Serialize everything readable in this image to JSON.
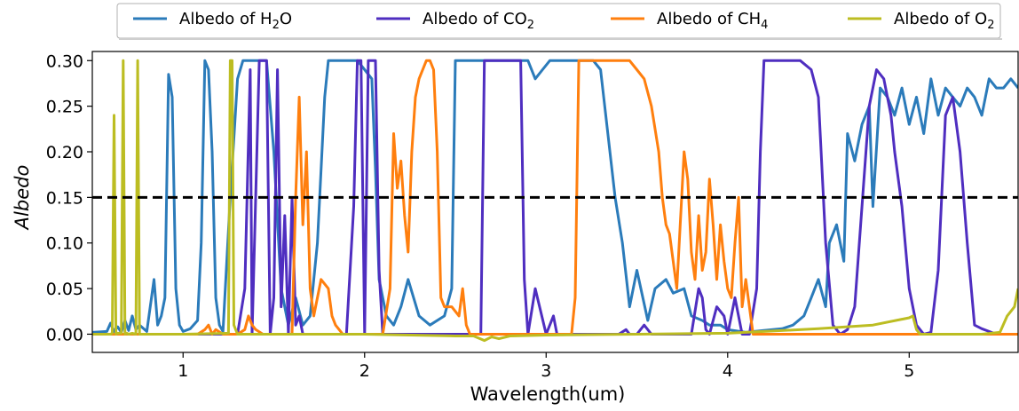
{
  "chart_data": {
    "type": "line",
    "xlabel": "Wavelength(um)",
    "ylabel": "Albedo",
    "xlim": [
      0.5,
      5.6
    ],
    "ylim": [
      -0.02,
      0.31
    ],
    "xticks": [
      1,
      2,
      3,
      4,
      5
    ],
    "yticks": [
      0.0,
      0.05,
      0.1,
      0.15,
      0.2,
      0.25,
      0.3
    ],
    "ytick_labels": [
      "0.00",
      "0.05",
      "0.10",
      "0.15",
      "0.20",
      "0.25",
      "0.30"
    ],
    "legend_position": "top-center, outside plot",
    "hline": {
      "y": 0.15,
      "style": "dashed",
      "color": "#000000"
    },
    "series": [
      {
        "name": "Albedo of H2O",
        "legend_base": "Albedo of H",
        "legend_sub": "2",
        "legend_tail": "O",
        "color": "#2b7bba",
        "x": [
          0.5,
          0.58,
          0.6,
          0.62,
          0.64,
          0.66,
          0.68,
          0.7,
          0.72,
          0.74,
          0.76,
          0.8,
          0.84,
          0.86,
          0.88,
          0.9,
          0.92,
          0.94,
          0.96,
          0.98,
          1.0,
          1.04,
          1.08,
          1.1,
          1.12,
          1.14,
          1.16,
          1.18,
          1.2,
          1.22,
          1.26,
          1.3,
          1.33,
          1.36,
          1.38,
          1.42,
          1.46,
          1.5,
          1.54,
          1.58,
          1.62,
          1.66,
          1.7,
          1.74,
          1.78,
          1.8,
          1.84,
          1.9,
          1.96,
          2.0,
          2.04,
          2.06,
          2.08,
          2.12,
          2.16,
          2.2,
          2.24,
          2.3,
          2.36,
          2.44,
          2.48,
          2.5,
          2.54,
          2.6,
          2.7,
          2.8,
          2.9,
          2.94,
          2.98,
          3.02,
          3.06,
          3.1,
          3.14,
          3.16,
          3.2,
          3.26,
          3.3,
          3.34,
          3.38,
          3.42,
          3.46,
          3.5,
          3.56,
          3.6,
          3.66,
          3.7,
          3.76,
          3.8,
          3.86,
          3.9,
          3.96,
          4.0,
          4.1,
          4.2,
          4.3,
          4.36,
          4.42,
          4.46,
          4.5,
          4.54,
          4.56,
          4.6,
          4.64,
          4.66,
          4.7,
          4.74,
          4.78,
          4.8,
          4.84,
          4.88,
          4.92,
          4.96,
          5.0,
          5.04,
          5.08,
          5.12,
          5.16,
          5.2,
          5.24,
          5.28,
          5.32,
          5.36,
          5.4,
          5.44,
          5.48,
          5.52,
          5.56,
          5.6
        ],
        "y": [
          0.002,
          0.003,
          0.012,
          0.003,
          0.008,
          0.002,
          0.015,
          0.004,
          0.02,
          0.005,
          0.01,
          0.003,
          0.06,
          0.01,
          0.02,
          0.04,
          0.285,
          0.26,
          0.05,
          0.01,
          0.003,
          0.006,
          0.015,
          0.1,
          0.3,
          0.29,
          0.2,
          0.04,
          0.01,
          0.003,
          0.15,
          0.28,
          0.3,
          0.3,
          0.3,
          0.3,
          0.3,
          0.2,
          0.05,
          0.01,
          0.04,
          0.01,
          0.02,
          0.1,
          0.26,
          0.3,
          0.3,
          0.3,
          0.3,
          0.29,
          0.28,
          0.18,
          0.06,
          0.02,
          0.01,
          0.03,
          0.06,
          0.02,
          0.01,
          0.02,
          0.05,
          0.3,
          0.3,
          0.3,
          0.3,
          0.3,
          0.3,
          0.28,
          0.29,
          0.3,
          0.3,
          0.3,
          0.3,
          0.3,
          0.3,
          0.3,
          0.29,
          0.22,
          0.15,
          0.1,
          0.03,
          0.07,
          0.015,
          0.05,
          0.06,
          0.045,
          0.05,
          0.02,
          0.015,
          0.01,
          0.01,
          0.005,
          0.002,
          0.004,
          0.006,
          0.01,
          0.02,
          0.04,
          0.06,
          0.03,
          0.1,
          0.12,
          0.08,
          0.22,
          0.19,
          0.23,
          0.25,
          0.14,
          0.27,
          0.26,
          0.24,
          0.27,
          0.23,
          0.26,
          0.22,
          0.28,
          0.24,
          0.27,
          0.26,
          0.25,
          0.27,
          0.26,
          0.24,
          0.28,
          0.27,
          0.27,
          0.28,
          0.27
        ]
      },
      {
        "name": "Albedo of CO2",
        "legend_base": "Albedo of CO",
        "legend_sub": "2",
        "legend_tail": "",
        "color": "#4f2ec0",
        "x": [
          0.5,
          1.3,
          1.34,
          1.37,
          1.38,
          1.42,
          1.44,
          1.46,
          1.48,
          1.5,
          1.52,
          1.54,
          1.56,
          1.58,
          1.6,
          1.62,
          1.64,
          1.66,
          1.68,
          1.9,
          1.94,
          1.96,
          1.98,
          2.0,
          2.02,
          2.04,
          2.06,
          2.08,
          2.1,
          2.12,
          2.16,
          2.6,
          2.64,
          2.66,
          2.68,
          2.7,
          2.74,
          2.78,
          2.82,
          2.86,
          2.88,
          2.9,
          2.94,
          3.0,
          3.04,
          3.06,
          3.1,
          3.4,
          3.44,
          3.46,
          3.5,
          3.54,
          3.58,
          3.6,
          3.8,
          3.84,
          3.86,
          3.88,
          3.9,
          3.94,
          3.98,
          4.0,
          4.04,
          4.08,
          4.12,
          4.16,
          4.18,
          4.2,
          4.3,
          4.4,
          4.46,
          4.5,
          4.54,
          4.58,
          4.62,
          4.66,
          4.7,
          4.74,
          4.78,
          4.82,
          4.86,
          4.9,
          4.92,
          4.96,
          5.0,
          5.04,
          5.08,
          5.12,
          5.16,
          5.2,
          5.24,
          5.28,
          5.32,
          5.36,
          5.4,
          5.44,
          5.48,
          5.52,
          5.56,
          5.6
        ],
        "y": [
          0.0,
          0.0,
          0.05,
          0.29,
          0.0,
          0.3,
          0.3,
          0.3,
          0.0,
          0.04,
          0.29,
          0.03,
          0.13,
          0.0,
          0.15,
          0.01,
          0.02,
          0.0,
          0.0,
          0.0,
          0.14,
          0.3,
          0.3,
          0.0,
          0.3,
          0.3,
          0.3,
          0.07,
          0.0,
          0.0,
          0.0,
          0.0,
          0.0,
          0.3,
          0.3,
          0.3,
          0.3,
          0.3,
          0.3,
          0.3,
          0.06,
          0.0,
          0.05,
          0.0,
          0.02,
          0.0,
          0.0,
          0.0,
          0.005,
          0.0,
          0.0,
          0.01,
          0.0,
          0.0,
          0.0,
          0.05,
          0.04,
          0.005,
          0.0,
          0.03,
          0.02,
          0.0,
          0.04,
          0.0,
          0.0,
          0.05,
          0.2,
          0.3,
          0.3,
          0.3,
          0.29,
          0.26,
          0.1,
          0.01,
          0.0,
          0.005,
          0.03,
          0.14,
          0.25,
          0.29,
          0.28,
          0.24,
          0.2,
          0.14,
          0.05,
          0.01,
          0.0,
          0.002,
          0.07,
          0.24,
          0.26,
          0.2,
          0.1,
          0.01,
          0.006,
          0.003,
          0.0,
          0.0,
          0.0,
          0.0
        ]
      },
      {
        "name": "Albedo of CH4",
        "legend_base": "Albedo of CH",
        "legend_sub": "4",
        "legend_tail": "",
        "color": "#ff7f0e",
        "x": [
          0.5,
          1.08,
          1.12,
          1.14,
          1.16,
          1.18,
          1.22,
          1.3,
          1.34,
          1.36,
          1.38,
          1.4,
          1.44,
          1.6,
          1.62,
          1.64,
          1.66,
          1.68,
          1.7,
          1.72,
          1.76,
          1.8,
          1.82,
          1.84,
          1.88,
          2.1,
          2.14,
          2.16,
          2.18,
          2.2,
          2.22,
          2.24,
          2.26,
          2.28,
          2.3,
          2.34,
          2.36,
          2.38,
          2.4,
          2.42,
          2.44,
          2.48,
          2.52,
          2.54,
          2.56,
          2.58,
          2.6,
          2.62,
          2.64,
          3.14,
          3.16,
          3.18,
          3.2,
          3.3,
          3.4,
          3.44,
          3.46,
          3.5,
          3.54,
          3.58,
          3.62,
          3.64,
          3.66,
          3.68,
          3.72,
          3.76,
          3.78,
          3.8,
          3.82,
          3.84,
          3.86,
          3.88,
          3.9,
          3.92,
          3.94,
          3.96,
          3.98,
          4.0,
          4.02,
          4.04,
          4.06,
          4.08,
          4.1,
          4.14,
          4.18,
          4.22,
          4.26,
          4.4,
          5.6
        ],
        "y": [
          0.0,
          0.0,
          0.005,
          0.01,
          0.0,
          0.005,
          0.0,
          0.0,
          0.005,
          0.02,
          0.01,
          0.005,
          0.0,
          0.0,
          0.15,
          0.26,
          0.12,
          0.2,
          0.05,
          0.02,
          0.06,
          0.05,
          0.02,
          0.01,
          0.0,
          0.0,
          0.05,
          0.22,
          0.16,
          0.19,
          0.13,
          0.09,
          0.2,
          0.26,
          0.28,
          0.3,
          0.3,
          0.29,
          0.2,
          0.04,
          0.03,
          0.03,
          0.02,
          0.05,
          0.01,
          0.0,
          0.0,
          0.0,
          0.0,
          0.0,
          0.04,
          0.3,
          0.3,
          0.3,
          0.3,
          0.3,
          0.3,
          0.29,
          0.28,
          0.25,
          0.2,
          0.15,
          0.12,
          0.11,
          0.05,
          0.2,
          0.17,
          0.09,
          0.06,
          0.13,
          0.07,
          0.09,
          0.17,
          0.12,
          0.06,
          0.12,
          0.08,
          0.05,
          0.04,
          0.1,
          0.15,
          0.03,
          0.06,
          0.0,
          0.0,
          0.0,
          0.0,
          0.0,
          0.0
        ]
      },
      {
        "name": "Albedo of O2",
        "legend_base": "Albedo of O",
        "legend_sub": "2",
        "legend_tail": "",
        "color": "#bcbd22",
        "x": [
          0.5,
          0.6,
          0.61,
          0.62,
          0.63,
          0.64,
          0.66,
          0.67,
          0.68,
          0.69,
          0.7,
          0.72,
          0.74,
          0.75,
          0.76,
          0.78,
          0.8,
          1.0,
          1.25,
          1.26,
          1.27,
          1.28,
          1.3,
          2.0,
          2.5,
          2.6,
          2.66,
          2.7,
          2.74,
          2.8,
          3.0,
          3.5,
          4.0,
          4.2,
          4.5,
          4.8,
          5.0,
          5.02,
          5.04,
          5.06,
          5.2,
          5.3,
          5.4,
          5.5,
          5.54,
          5.58,
          5.6
        ],
        "y": [
          0.0,
          0.0,
          0.001,
          0.24,
          0.0,
          0.001,
          0.001,
          0.3,
          0.0,
          0.001,
          0.0,
          0.001,
          0.0,
          0.3,
          0.0,
          0.0,
          0.0,
          0.0,
          0.001,
          0.3,
          0.3,
          0.01,
          0.0,
          0.0,
          -0.002,
          -0.002,
          -0.007,
          -0.003,
          -0.005,
          -0.002,
          -0.001,
          0.0,
          0.001,
          0.003,
          0.006,
          0.01,
          0.018,
          0.02,
          0.005,
          0.0,
          0.0,
          0.0,
          0.0,
          0.002,
          0.02,
          0.03,
          0.05
        ]
      }
    ]
  }
}
